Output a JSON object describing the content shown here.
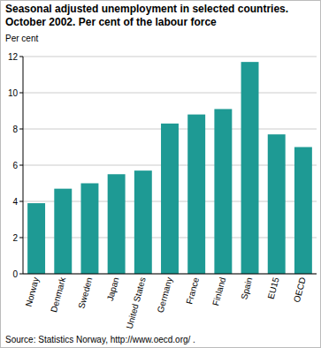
{
  "chart_data": {
    "type": "bar",
    "title": "Seasonal adjusted unemployment in selected countries.",
    "subtitle": "October 2002. Per cent of the labour force",
    "y_label": "Per cent",
    "source": "Source: Statistics Norway, http://www.oecd.org/ .",
    "categories": [
      "Norway",
      "Denmark",
      "Sweden",
      "Japan",
      "United States",
      "Germany",
      "France",
      "Finland",
      "Spain",
      "EU15",
      "OECD"
    ],
    "values": [
      3.9,
      4.7,
      5.0,
      5.5,
      5.7,
      8.3,
      8.8,
      9.1,
      11.7,
      7.7,
      7.0
    ],
    "color": "#1e9a94",
    "ylim": [
      0,
      12
    ],
    "yticks": [
      0,
      2,
      4,
      6,
      8,
      10,
      12
    ],
    "grid": true
  }
}
